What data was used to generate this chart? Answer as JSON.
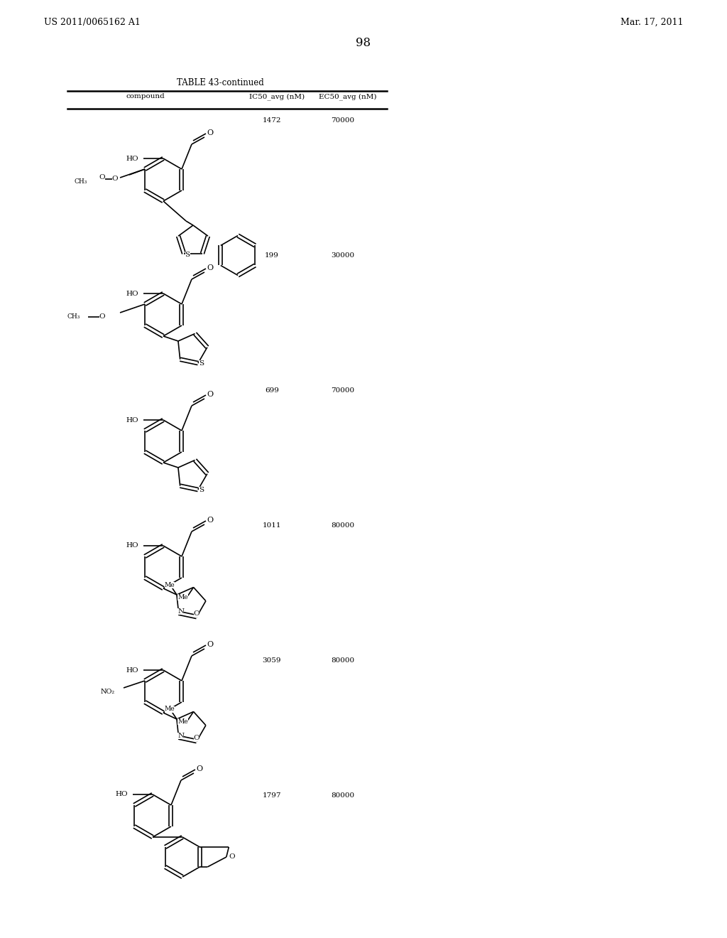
{
  "header_left": "US 2011/0065162 A1",
  "header_right": "Mar. 17, 2011",
  "page_number": "98",
  "table_title": "TABLE 43-continued",
  "col1": "compound",
  "col2": "IC50_avg (nM)",
  "col3": "EC50_avg (nM)",
  "rows": [
    {
      "ic50": "1472",
      "ec50": "70000"
    },
    {
      "ic50": "199",
      "ec50": "30000"
    },
    {
      "ic50": "699",
      "ec50": "70000"
    },
    {
      "ic50": "1011",
      "ec50": "80000"
    },
    {
      "ic50": "3059",
      "ec50": "80000"
    },
    {
      "ic50": "1797",
      "ec50": "80000"
    }
  ],
  "bg_color": "#ffffff",
  "text_color": "#000000",
  "lw": 1.2
}
